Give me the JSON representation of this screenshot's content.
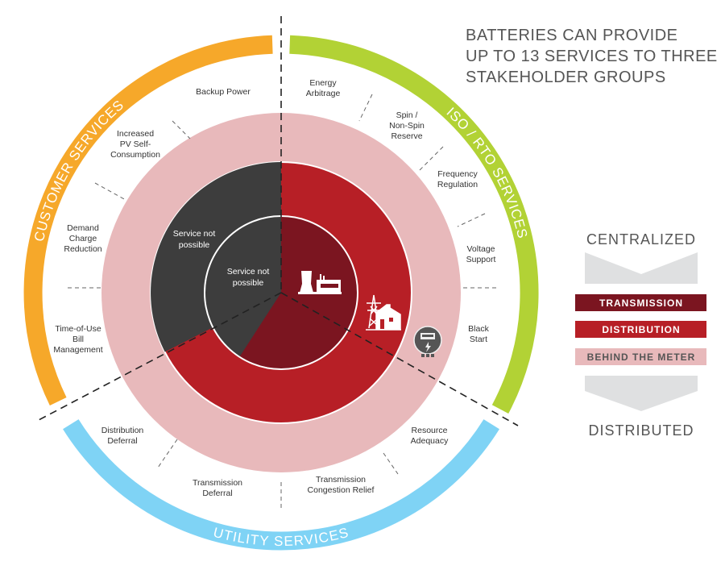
{
  "title": {
    "lines": [
      "BATTERIES CAN PROVIDE",
      "UP TO 13 SERVICES TO THREE",
      "STAKEHOLDER GROUPS"
    ]
  },
  "groups": {
    "customer": {
      "label": "CUSTOMER SERVICES",
      "color": "#f6a82a"
    },
    "iso_rto": {
      "label": "ISO / RTO SERVICES",
      "color": "#b2d235"
    },
    "utility": {
      "label": "UTILITY SERVICES",
      "color": "#7fd3f5"
    }
  },
  "services": {
    "energy_arbitrage": [
      "Energy",
      "Arbitrage"
    ],
    "spin_reserve": [
      "Spin /",
      "Non-Spin",
      "Reserve"
    ],
    "frequency_regulation": [
      "Frequency",
      "Regulation"
    ],
    "voltage_support": [
      "Voltage",
      "Support"
    ],
    "black_start": [
      "Black",
      "Start"
    ],
    "resource_adequacy": [
      "Resource",
      "Adequacy"
    ],
    "transmission_congestion": [
      "Transmission",
      "Congestion Relief"
    ],
    "transmission_deferral": [
      "Transmission",
      "Deferral"
    ],
    "distribution_deferral": [
      "Distribution",
      "Deferral"
    ],
    "tou_bill": [
      "Time-of-Use",
      "Bill",
      "Management"
    ],
    "demand_charge": [
      "Demand",
      "Charge",
      "Reduction"
    ],
    "pv_self": [
      "Increased",
      "PV Self-",
      "Consumption"
    ],
    "backup_power": [
      "Backup Power"
    ]
  },
  "inner": {
    "not_possible_outer": [
      "Service not",
      "possible"
    ],
    "not_possible_inner": [
      "Service not",
      "possible"
    ]
  },
  "legend": {
    "top": "CENTRALIZED",
    "bottom": "DISTRIBUTED",
    "tiers": [
      {
        "label": "TRANSMISSION",
        "color": "#7b1520"
      },
      {
        "label": "DISTRIBUTION",
        "color": "#b71f26"
      },
      {
        "label": "BEHIND THE METER",
        "color": "#e8b9bb"
      }
    ]
  },
  "icons": [
    "power-plant-icon",
    "transmission-tower-house-icon",
    "electric-meter-icon"
  ]
}
